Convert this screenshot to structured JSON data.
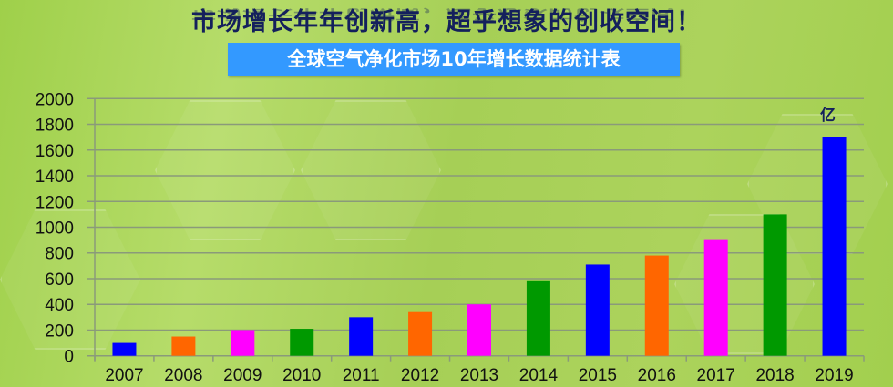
{
  "header": {
    "title": "市场增长年年创新高，超乎想象的创收空间！",
    "subtitle": "全球空气净化市场10年增长数据统计表"
  },
  "chart_data": {
    "type": "bar",
    "title": "全球空气净化市场10年增长数据统计表",
    "unit_label": "亿",
    "categories": [
      "2007",
      "2008",
      "2009",
      "2010",
      "2011",
      "2012",
      "2013",
      "2014",
      "2015",
      "2016",
      "2017",
      "2018",
      "2019"
    ],
    "values": [
      100,
      150,
      200,
      210,
      300,
      340,
      400,
      580,
      710,
      780,
      900,
      1100,
      1700
    ],
    "colors": [
      "#0000ff",
      "#ff6600",
      "#ff00ff",
      "#009900",
      "#0000ff",
      "#ff6600",
      "#ff00ff",
      "#009900",
      "#0000ff",
      "#ff6600",
      "#ff00ff",
      "#009900",
      "#0000ff"
    ],
    "ylim": [
      0,
      2000
    ],
    "yticks": [
      0,
      200,
      400,
      600,
      800,
      1000,
      1200,
      1400,
      1600,
      1800,
      2000
    ],
    "grid": true,
    "xlabel": "",
    "ylabel": ""
  }
}
